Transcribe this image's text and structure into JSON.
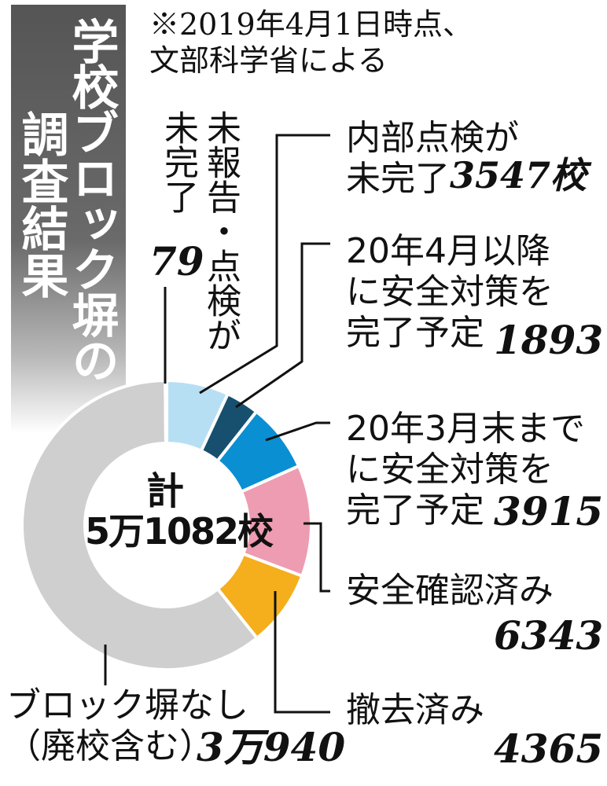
{
  "title": {
    "line1": "学校ブロック塀の",
    "line2": "調査結果"
  },
  "note": "※2019年4月1日時点、\n文部科学省による",
  "center": {
    "label": "計",
    "total": "5万1082校"
  },
  "chart_data": {
    "type": "pie",
    "total_label": "計 5万1082校",
    "slices": [
      {
        "label": "内部点検が未完了",
        "value": 3547,
        "display": "3547校",
        "color": "#b7dff3"
      },
      {
        "label": "20年4月以降に安全対策を完了予定",
        "value": 1893,
        "display": "1893",
        "color": "#17506e"
      },
      {
        "label": "20年3月末までに安全対策を完了予定",
        "value": 3915,
        "display": "3915",
        "color": "#0a8fd2"
      },
      {
        "label": "安全確認済み",
        "value": 6343,
        "display": "6343",
        "color": "#ee9cb1"
      },
      {
        "label": "撤去済み",
        "value": 4365,
        "display": "4365",
        "color": "#f5ae1c"
      },
      {
        "label": "ブロック塀なし（廃校含む）",
        "value": 30940,
        "display": "3万940",
        "color": "#cfcfcf"
      },
      {
        "label": "未報告・点検が未完了",
        "value": 79,
        "display": "79",
        "color": "#7a7a7a"
      }
    ]
  },
  "labels": {
    "unreported": {
      "text": "未報告・点検が未完了",
      "col1": "未報告・点検が",
      "col2": "未完了",
      "value": "79"
    },
    "internal": {
      "line": "内部点検が\n未完了",
      "value": "3547校"
    },
    "after_apr": {
      "line": "20年4月以降\nに安全対策を\n完了予定",
      "value": "1893"
    },
    "by_mar": {
      "line": "20年3月末まで\nに安全対策を\n完了予定",
      "value": "3915"
    },
    "confirmed": {
      "line": "安全確認済み",
      "value": "6343"
    },
    "removed": {
      "line": "撤去済み",
      "value": "4365"
    },
    "none": {
      "line": "ブロック塀なし\n（廃校含む）",
      "value": "3万940"
    }
  }
}
